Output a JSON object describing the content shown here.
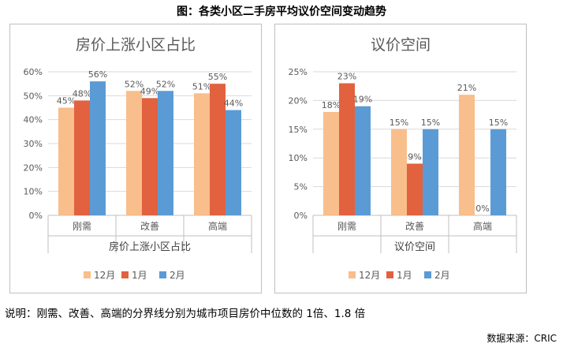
{
  "figure_title": "图：各类小区二手房平均议价空间变动趋势",
  "note": "说明：刚需、改善、高端的分界线分别为城市项目房价中位数的 1倍、1.8 倍",
  "source": "数据来源：CRIC",
  "colors": {
    "s1": "#F8BE8B",
    "s2": "#E2613F",
    "s3": "#5B9BD5",
    "grid": "#d9d9d9",
    "axis": "#bfbfbf",
    "text": "#595959"
  },
  "chart_data": [
    {
      "type": "bar",
      "title": "房价上涨小区占比",
      "xlabel": "房价上涨小区占比",
      "ylabel": "",
      "categories": [
        "刚需",
        "改善",
        "高端"
      ],
      "ylim": [
        0,
        60
      ],
      "yticks": [
        "0%",
        "10%",
        "20%",
        "30%",
        "40%",
        "50%",
        "60%"
      ],
      "grid": true,
      "legend": "bottom",
      "series": [
        {
          "name": "12月",
          "values": [
            45,
            52,
            51
          ],
          "labels": [
            "45%",
            "52%",
            "51%"
          ]
        },
        {
          "name": "1月",
          "values": [
            48,
            49,
            55
          ],
          "labels": [
            "48%",
            "49%",
            "55%"
          ]
        },
        {
          "name": "2月",
          "values": [
            56,
            52,
            44
          ],
          "labels": [
            "56%",
            "52%",
            "44%"
          ]
        }
      ]
    },
    {
      "type": "bar",
      "title": "议价空间",
      "xlabel": "议价空间",
      "ylabel": "",
      "categories": [
        "刚需",
        "改善",
        "高端"
      ],
      "ylim": [
        0,
        25
      ],
      "yticks": [
        "0%",
        "5%",
        "10%",
        "15%",
        "20%",
        "25%"
      ],
      "grid": true,
      "legend": "bottom",
      "series": [
        {
          "name": "12月",
          "values": [
            18,
            15,
            21
          ],
          "labels": [
            "18%",
            "15%",
            "21%"
          ]
        },
        {
          "name": "1月",
          "values": [
            23,
            9,
            0
          ],
          "labels": [
            "23%",
            "9%",
            "0%"
          ]
        },
        {
          "name": "2月",
          "values": [
            19,
            15,
            15
          ],
          "labels": [
            "19%",
            "15%",
            "15%"
          ]
        }
      ]
    }
  ]
}
